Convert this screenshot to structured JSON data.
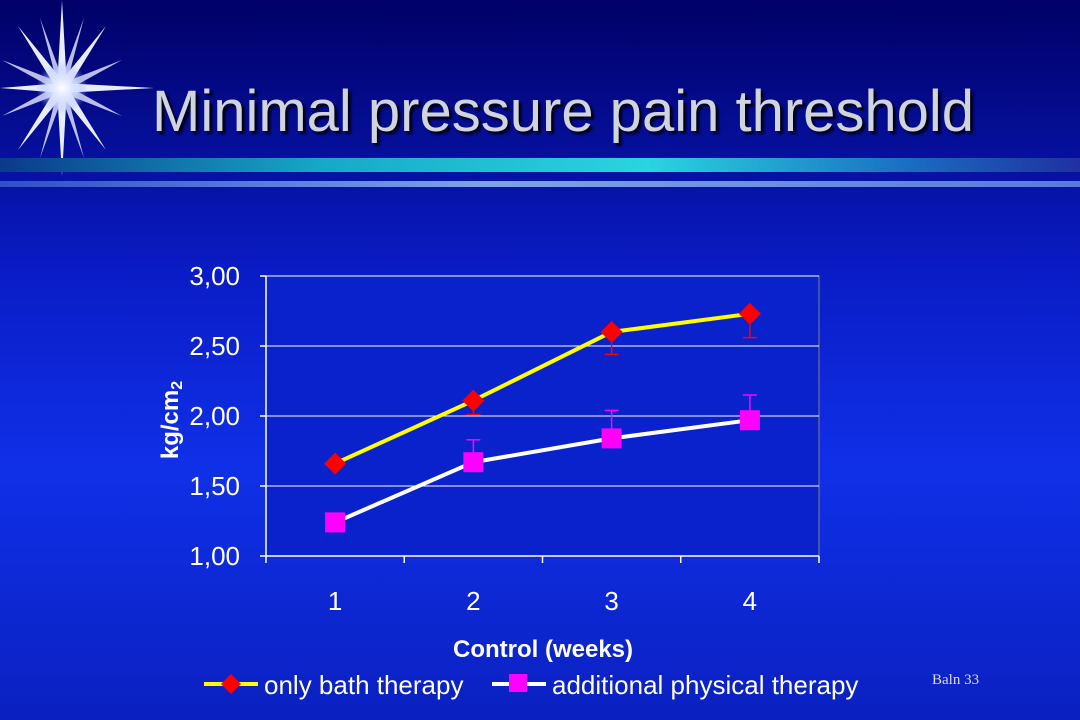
{
  "slide": {
    "title": "Minimal pressure pain threshold",
    "slide_number": "Baln 33",
    "decoration_icon": "starburst-icon"
  },
  "chart_data": {
    "type": "line",
    "title": "",
    "xlabel": "Control (weeks)",
    "ylabel": "kg/cm",
    "ylabel_subscript": "2",
    "x": [
      1,
      2,
      3,
      4
    ],
    "x_tick_labels": [
      "1",
      "2",
      "3",
      "4"
    ],
    "ylim": [
      1.0,
      3.0
    ],
    "y_ticks": [
      1.0,
      1.5,
      2.0,
      2.5,
      3.0
    ],
    "y_tick_labels": [
      "1,00",
      "1,50",
      "2,00",
      "2,50",
      "3,00"
    ],
    "grid": "horizontal",
    "legend_placement": "bottom",
    "series": [
      {
        "name": "only bath therapy",
        "values": [
          1.66,
          2.11,
          2.6,
          2.73
        ],
        "error_low": [
          0.02,
          0.1,
          0.16,
          0.17
        ],
        "error_high": [
          0.0,
          0.0,
          0.0,
          0.0
        ],
        "line_color": "#ffff00",
        "marker_color": "#ff0000",
        "marker": "diamond"
      },
      {
        "name": "additional physical therapy",
        "values": [
          1.24,
          1.67,
          1.84,
          1.97
        ],
        "error_low": [
          0.0,
          0.0,
          0.0,
          0.0
        ],
        "error_high": [
          0.03,
          0.16,
          0.2,
          0.18
        ],
        "line_color": "#ffffff",
        "marker_color": "#ff00ff",
        "marker": "square"
      }
    ],
    "plot_background": "#0a20c8",
    "grid_color": "#ffffff"
  }
}
